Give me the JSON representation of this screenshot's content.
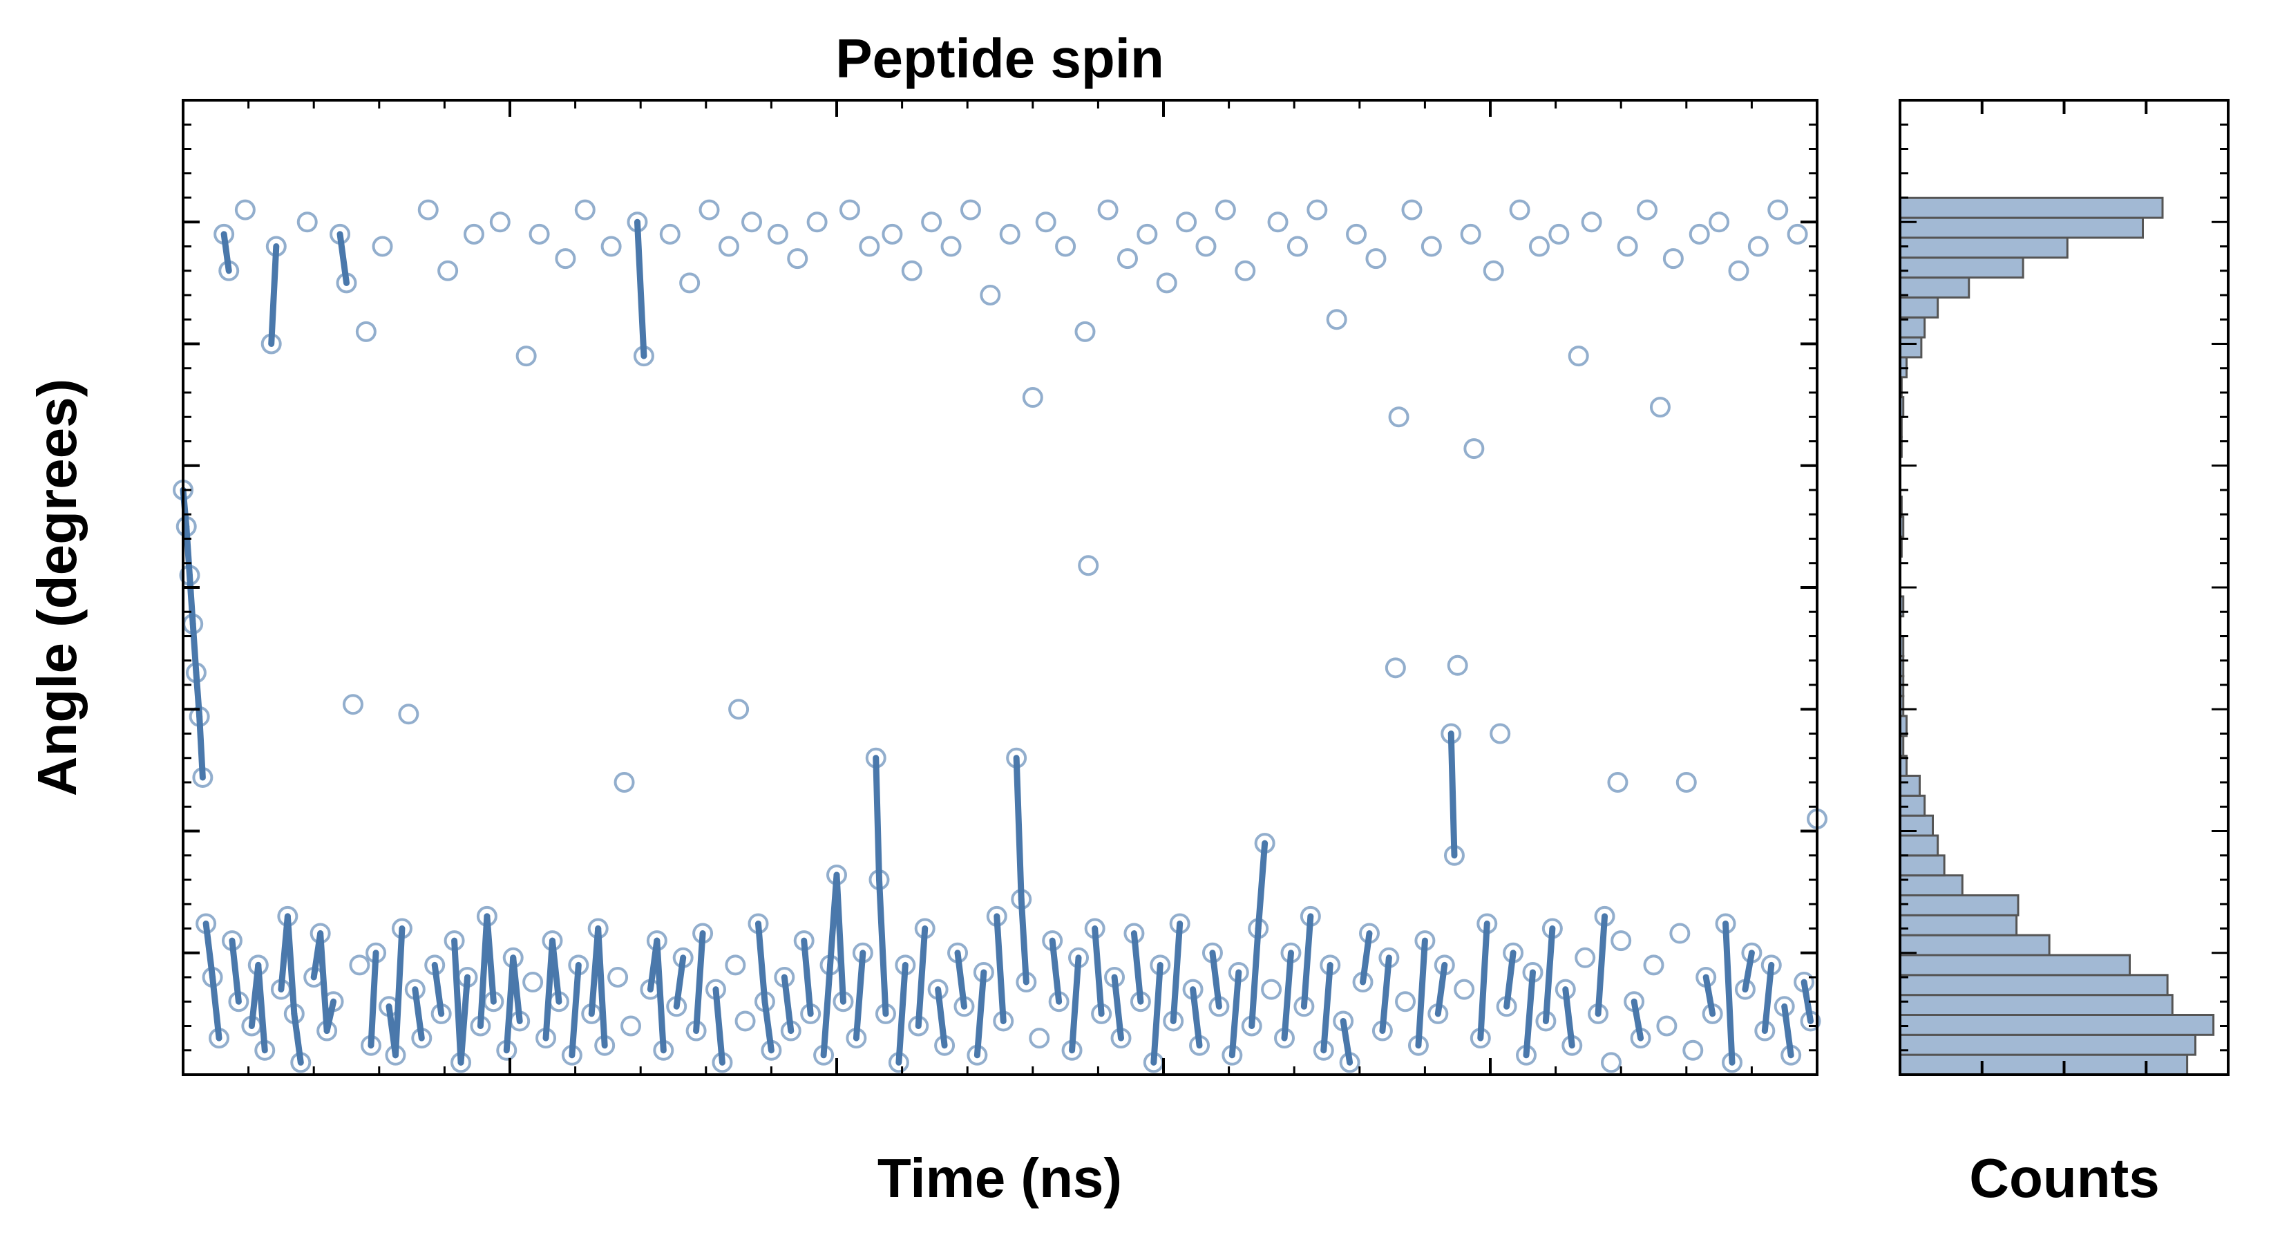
{
  "chart_data": [
    {
      "type": "scatter",
      "title": "Peptide spin",
      "xlabel": "Time (ns)",
      "ylabel": "Angle (degrees)",
      "xlim": [
        0,
        5000
      ],
      "ylim": [
        0,
        400
      ],
      "xticks": [
        "0",
        "1000",
        "2000",
        "3000",
        "4000",
        "5000"
      ],
      "yticks": [
        "0",
        "50",
        "100",
        "150",
        "200",
        "250",
        "300",
        "350",
        "400"
      ],
      "color": "#4a78ab",
      "marker": "open-circle",
      "points": [
        [
          0,
          240
        ],
        [
          10,
          225
        ],
        [
          20,
          205
        ],
        [
          30,
          185
        ],
        [
          40,
          165
        ],
        [
          50,
          147
        ],
        [
          60,
          122
        ],
        [
          70,
          62
        ],
        [
          90,
          40
        ],
        [
          110,
          15
        ],
        [
          125,
          345
        ],
        [
          140,
          330
        ],
        [
          150,
          55
        ],
        [
          170,
          30
        ],
        [
          190,
          355
        ],
        [
          210,
          20
        ],
        [
          230,
          45
        ],
        [
          250,
          10
        ],
        [
          270,
          300
        ],
        [
          285,
          340
        ],
        [
          300,
          35
        ],
        [
          320,
          65
        ],
        [
          340,
          25
        ],
        [
          360,
          5
        ],
        [
          380,
          350
        ],
        [
          400,
          40
        ],
        [
          420,
          58
        ],
        [
          440,
          18
        ],
        [
          460,
          30
        ],
        [
          480,
          345
        ],
        [
          500,
          325
        ],
        [
          520,
          152
        ],
        [
          540,
          45
        ],
        [
          560,
          305
        ],
        [
          575,
          12
        ],
        [
          590,
          50
        ],
        [
          610,
          340
        ],
        [
          630,
          28
        ],
        [
          650,
          8
        ],
        [
          670,
          60
        ],
        [
          690,
          148
        ],
        [
          710,
          35
        ],
        [
          730,
          15
        ],
        [
          750,
          355
        ],
        [
          770,
          45
        ],
        [
          790,
          25
        ],
        [
          810,
          330
        ],
        [
          830,
          55
        ],
        [
          850,
          5
        ],
        [
          870,
          40
        ],
        [
          890,
          345
        ],
        [
          910,
          20
        ],
        [
          930,
          65
        ],
        [
          950,
          30
        ],
        [
          970,
          350
        ],
        [
          990,
          10
        ],
        [
          1010,
          48
        ],
        [
          1030,
          22
        ],
        [
          1050,
          295
        ],
        [
          1070,
          38
        ],
        [
          1090,
          345
        ],
        [
          1110,
          15
        ],
        [
          1130,
          55
        ],
        [
          1150,
          30
        ],
        [
          1170,
          335
        ],
        [
          1190,
          8
        ],
        [
          1210,
          45
        ],
        [
          1230,
          355
        ],
        [
          1250,
          25
        ],
        [
          1270,
          60
        ],
        [
          1290,
          12
        ],
        [
          1310,
          340
        ],
        [
          1330,
          40
        ],
        [
          1350,
          120
        ],
        [
          1370,
          20
        ],
        [
          1390,
          350
        ],
        [
          1410,
          295
        ],
        [
          1430,
          35
        ],
        [
          1450,
          55
        ],
        [
          1470,
          10
        ],
        [
          1490,
          345
        ],
        [
          1510,
          28
        ],
        [
          1530,
          48
        ],
        [
          1550,
          325
        ],
        [
          1570,
          18
        ],
        [
          1590,
          58
        ],
        [
          1610,
          355
        ],
        [
          1630,
          35
        ],
        [
          1650,
          5
        ],
        [
          1670,
          340
        ],
        [
          1690,
          45
        ],
        [
          1700,
          150
        ],
        [
          1720,
          22
        ],
        [
          1740,
          350
        ],
        [
          1760,
          62
        ],
        [
          1780,
          30
        ],
        [
          1800,
          10
        ],
        [
          1820,
          345
        ],
        [
          1840,
          40
        ],
        [
          1860,
          18
        ],
        [
          1880,
          335
        ],
        [
          1900,
          55
        ],
        [
          1920,
          25
        ],
        [
          1940,
          350
        ],
        [
          1960,
          8
        ],
        [
          1980,
          45
        ],
        [
          2000,
          82
        ],
        [
          2020,
          30
        ],
        [
          2040,
          355
        ],
        [
          2060,
          15
        ],
        [
          2080,
          50
        ],
        [
          2100,
          340
        ],
        [
          2120,
          130
        ],
        [
          2130,
          80
        ],
        [
          2150,
          25
        ],
        [
          2170,
          345
        ],
        [
          2190,
          5
        ],
        [
          2210,
          45
        ],
        [
          2230,
          330
        ],
        [
          2250,
          20
        ],
        [
          2270,
          60
        ],
        [
          2290,
          350
        ],
        [
          2310,
          35
        ],
        [
          2330,
          12
        ],
        [
          2350,
          340
        ],
        [
          2370,
          50
        ],
        [
          2390,
          28
        ],
        [
          2410,
          355
        ],
        [
          2430,
          8
        ],
        [
          2450,
          42
        ],
        [
          2470,
          320
        ],
        [
          2490,
          65
        ],
        [
          2510,
          22
        ],
        [
          2530,
          345
        ],
        [
          2550,
          130
        ],
        [
          2565,
          72
        ],
        [
          2580,
          38
        ],
        [
          2600,
          278
        ],
        [
          2620,
          15
        ],
        [
          2640,
          350
        ],
        [
          2660,
          55
        ],
        [
          2680,
          30
        ],
        [
          2700,
          340
        ],
        [
          2720,
          10
        ],
        [
          2740,
          48
        ],
        [
          2760,
          305
        ],
        [
          2770,
          209
        ],
        [
          2790,
          60
        ],
        [
          2810,
          25
        ],
        [
          2830,
          355
        ],
        [
          2850,
          40
        ],
        [
          2870,
          15
        ],
        [
          2890,
          335
        ],
        [
          2910,
          58
        ],
        [
          2930,
          30
        ],
        [
          2950,
          345
        ],
        [
          2970,
          5
        ],
        [
          2990,
          45
        ],
        [
          3010,
          325
        ],
        [
          3030,
          22
        ],
        [
          3050,
          62
        ],
        [
          3070,
          350
        ],
        [
          3090,
          35
        ],
        [
          3110,
          12
        ],
        [
          3130,
          340
        ],
        [
          3150,
          50
        ],
        [
          3170,
          28
        ],
        [
          3190,
          355
        ],
        [
          3210,
          8
        ],
        [
          3230,
          42
        ],
        [
          3250,
          330
        ],
        [
          3270,
          20
        ],
        [
          3290,
          60
        ],
        [
          3310,
          95
        ],
        [
          3330,
          35
        ],
        [
          3350,
          350
        ],
        [
          3370,
          15
        ],
        [
          3390,
          50
        ],
        [
          3410,
          340
        ],
        [
          3430,
          28
        ],
        [
          3450,
          65
        ],
        [
          3470,
          355
        ],
        [
          3490,
          10
        ],
        [
          3510,
          45
        ],
        [
          3530,
          310
        ],
        [
          3550,
          22
        ],
        [
          3570,
          5
        ],
        [
          3590,
          345
        ],
        [
          3610,
          38
        ],
        [
          3630,
          58
        ],
        [
          3650,
          335
        ],
        [
          3670,
          18
        ],
        [
          3690,
          48
        ],
        [
          3710,
          167
        ],
        [
          3720,
          270
        ],
        [
          3740,
          30
        ],
        [
          3760,
          355
        ],
        [
          3780,
          12
        ],
        [
          3800,
          55
        ],
        [
          3820,
          340
        ],
        [
          3840,
          25
        ],
        [
          3860,
          45
        ],
        [
          3880,
          140
        ],
        [
          3890,
          90
        ],
        [
          3900,
          168
        ],
        [
          3920,
          35
        ],
        [
          3940,
          345
        ],
        [
          3950,
          257
        ],
        [
          3970,
          15
        ],
        [
          3990,
          62
        ],
        [
          4010,
          330
        ],
        [
          4030,
          140
        ],
        [
          4050,
          28
        ],
        [
          4070,
          50
        ],
        [
          4090,
          355
        ],
        [
          4110,
          8
        ],
        [
          4130,
          42
        ],
        [
          4150,
          340
        ],
        [
          4170,
          22
        ],
        [
          4190,
          60
        ],
        [
          4210,
          345
        ],
        [
          4230,
          35
        ],
        [
          4250,
          12
        ],
        [
          4270,
          295
        ],
        [
          4290,
          48
        ],
        [
          4310,
          350
        ],
        [
          4330,
          25
        ],
        [
          4350,
          65
        ],
        [
          4370,
          5
        ],
        [
          4390,
          120
        ],
        [
          4400,
          55
        ],
        [
          4420,
          340
        ],
        [
          4440,
          30
        ],
        [
          4460,
          15
        ],
        [
          4480,
          355
        ],
        [
          4500,
          45
        ],
        [
          4520,
          274
        ],
        [
          4540,
          20
        ],
        [
          4560,
          335
        ],
        [
          4580,
          58
        ],
        [
          4600,
          120
        ],
        [
          4620,
          10
        ],
        [
          4640,
          345
        ],
        [
          4660,
          40
        ],
        [
          4680,
          25
        ],
        [
          4700,
          350
        ],
        [
          4720,
          62
        ],
        [
          4740,
          5
        ],
        [
          4760,
          330
        ],
        [
          4780,
          35
        ],
        [
          4800,
          50
        ],
        [
          4820,
          340
        ],
        [
          4840,
          18
        ],
        [
          4860,
          45
        ],
        [
          4880,
          355
        ],
        [
          4900,
          28
        ],
        [
          4920,
          8
        ],
        [
          4940,
          345
        ],
        [
          4960,
          38
        ],
        [
          4980,
          22
        ],
        [
          5000,
          105
        ]
      ]
    },
    {
      "type": "bar",
      "orientation": "horizontal",
      "xlabel": "Counts",
      "xlim": [
        0,
        200
      ],
      "xticks": [
        "0",
        "200"
      ],
      "ylim": [
        0,
        400
      ],
      "bin_width_degrees": 8.18,
      "bin_start_degrees": 0,
      "fill_color": "#a2b9d4",
      "edge_color": "#555555",
      "counts": [
        175,
        180,
        191,
        166,
        163,
        140,
        91,
        71,
        72,
        38,
        27,
        23,
        20,
        15,
        12,
        4,
        2,
        4,
        2,
        2,
        2,
        2,
        0,
        2,
        0,
        0,
        1,
        2,
        1,
        0,
        0,
        1,
        1,
        2,
        1,
        4,
        13,
        15,
        23,
        42,
        75,
        102,
        148,
        160
      ]
    }
  ]
}
